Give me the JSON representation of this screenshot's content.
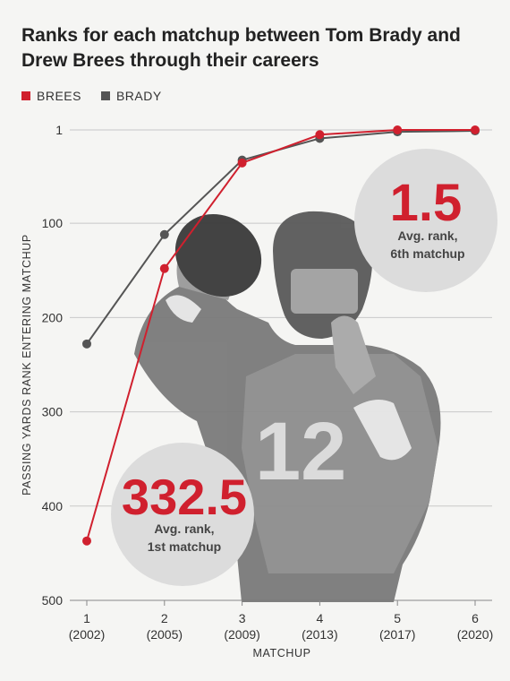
{
  "header": {
    "title": "Ranks for each matchup between Tom Brady and Drew Brees through their careers"
  },
  "legend": [
    {
      "label": "BREES",
      "color": "#d0202e"
    },
    {
      "label": "BRADY",
      "color": "#555555"
    }
  ],
  "callouts": {
    "last": {
      "value": "1.5",
      "line1": "Avg. rank,",
      "line2": "6th matchup"
    },
    "first": {
      "value": "332.5",
      "line1": "Avg. rank,",
      "line2": "1st matchup"
    }
  },
  "chart_data": {
    "type": "line",
    "title": "Ranks for each matchup between Tom Brady and Drew Brees through their careers",
    "xlabel": "MATCHUP",
    "ylabel": "PASSING YARDS RANK ENTERING MATCHUP",
    "categories": [
      "1",
      "2",
      "3",
      "4",
      "5",
      "6"
    ],
    "category_sublabels": [
      "(2002)",
      "(2005)",
      "(2009)",
      "(2013)",
      "(2017)",
      "(2020)"
    ],
    "y_ticks": [
      1,
      100,
      200,
      300,
      400,
      500
    ],
    "ylim": [
      500,
      1
    ],
    "y_inverted": true,
    "grid": true,
    "legend_position": "top-left",
    "series": [
      {
        "name": "BREES",
        "color": "#d0202e",
        "values": [
          437,
          148,
          36,
          6,
          1,
          1
        ]
      },
      {
        "name": "BRADY",
        "color": "#555555",
        "values": [
          228,
          112,
          33,
          10,
          3,
          2
        ]
      }
    ]
  }
}
